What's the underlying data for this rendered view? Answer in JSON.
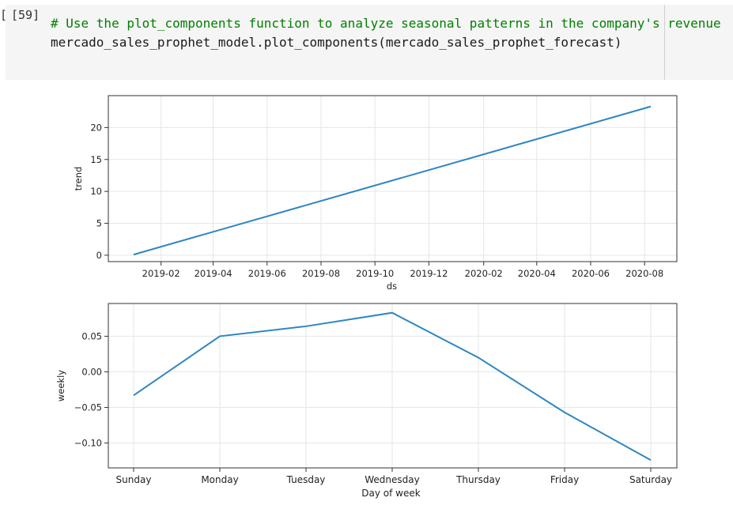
{
  "cell": {
    "left_mark": "[",
    "prompt": "[59]",
    "code_lines": [
      "# Use the plot_components function to analyze seasonal patterns in the company's revenue",
      "mercado_sales_prophet_model.plot_components(mercado_sales_prophet_forecast)"
    ]
  },
  "chart_data": [
    {
      "type": "line",
      "xlabel": "ds",
      "ylabel": "trend",
      "x_tick_labels": [
        "2019-02",
        "2019-04",
        "2019-06",
        "2019-08",
        "2019-10",
        "2019-12",
        "2020-02",
        "2020-04",
        "2020-06",
        "2020-08"
      ],
      "y_ticks": [
        0,
        5,
        10,
        15,
        20
      ],
      "ylim": [
        -1,
        25
      ],
      "x_start": "2019-01-01",
      "x_end": "2020-08-08",
      "series": [
        {
          "x": [
            "2019-01-01",
            "2020-08-08"
          ],
          "y": [
            0.1,
            23.3
          ]
        }
      ],
      "grid": true,
      "color": "#2e86c1"
    },
    {
      "type": "line",
      "xlabel": "Day of week",
      "ylabel": "weekly",
      "categories": [
        "Sunday",
        "Monday",
        "Tuesday",
        "Wednesday",
        "Thursday",
        "Friday",
        "Saturday"
      ],
      "values": [
        -0.033,
        0.05,
        0.064,
        0.083,
        0.02,
        -0.057,
        -0.124
      ],
      "y_ticks": [
        0.05,
        0.0,
        -0.05,
        -0.1
      ],
      "y_tick_labels": [
        "0.05",
        "0.00",
        "−0.05",
        "−0.10"
      ],
      "ylim": [
        -0.135,
        0.096
      ],
      "grid": true,
      "color": "#2e86c1"
    }
  ]
}
